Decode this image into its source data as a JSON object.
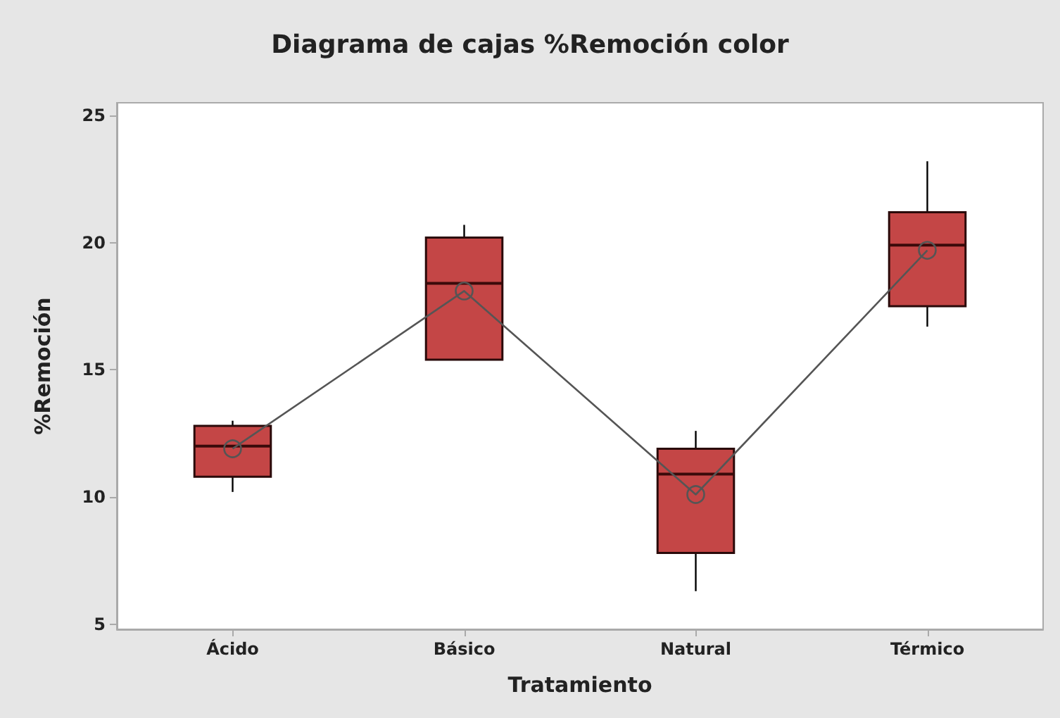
{
  "chart_data": {
    "type": "box",
    "title": "Diagrama de cajas %Remoción color",
    "xlabel": "Tratamiento",
    "ylabel": "%Remoción",
    "categories": [
      "Ácido",
      "Básico",
      "Natural",
      "Térmico"
    ],
    "series": [
      {
        "color": "#c44646",
        "boxes": [
          {
            "low": 10.2,
            "q1": 10.8,
            "median": 12.0,
            "q3": 12.8,
            "high": 13.0
          },
          {
            "low": 15.4,
            "q1": 15.4,
            "median": 18.4,
            "q3": 20.2,
            "high": 20.7
          },
          {
            "low": 6.3,
            "q1": 7.8,
            "median": 10.9,
            "q3": 11.9,
            "high": 12.6
          },
          {
            "low": 16.7,
            "q1": 17.5,
            "median": 19.9,
            "q3": 21.2,
            "high": 23.2
          }
        ]
      },
      {
        "type": "line",
        "color": "#555555",
        "marker": "circle",
        "values": [
          11.9,
          18.1,
          10.1,
          19.7
        ]
      }
    ],
    "ylim": [
      4.8,
      25.5
    ],
    "yticks": [
      5,
      10,
      15,
      20,
      25
    ],
    "grid": false
  }
}
